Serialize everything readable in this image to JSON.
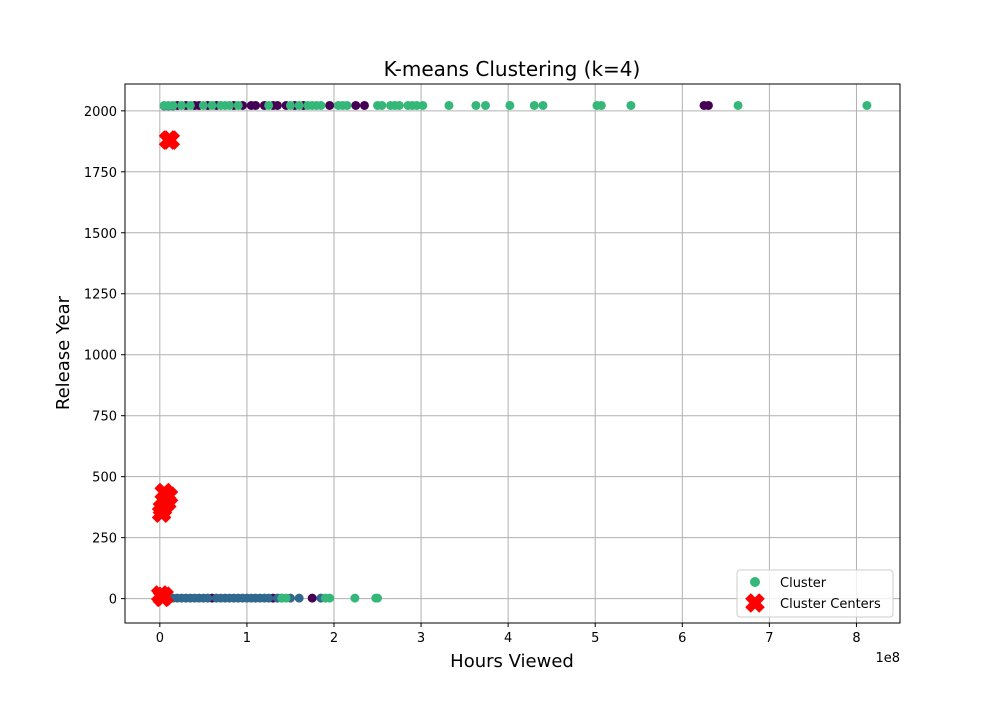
{
  "chart_data": {
    "type": "scatter",
    "title": "K-means Clustering (k=4)",
    "xlabel": "Hours Viewed",
    "ylabel": "Release Year",
    "x_offset_text": "1e8",
    "xlim": [
      -0.4,
      8.5
    ],
    "ylim": [
      -100,
      2110
    ],
    "x_ticks": [
      0,
      1,
      2,
      3,
      4,
      5,
      6,
      7,
      8
    ],
    "y_ticks": [
      0,
      250,
      500,
      750,
      1000,
      1250,
      1500,
      1750,
      2000
    ],
    "grid": true,
    "legend_position": "bottom-right",
    "legend": [
      {
        "label": "Cluster",
        "marker": "circle",
        "color": "#35b779"
      },
      {
        "label": "Cluster Centers",
        "marker": "x",
        "color": "#ff0000"
      }
    ],
    "colors": {
      "cluster_0": "#440154",
      "cluster_1": "#31688e",
      "cluster_2": "#35b779",
      "centers": "#ff0000"
    },
    "series": [
      {
        "cluster": 0,
        "color": "#440154",
        "points": [
          [
            0.2,
            2022
          ],
          [
            0.3,
            2022
          ],
          [
            0.4,
            2022
          ],
          [
            0.45,
            2022
          ],
          [
            0.55,
            2022
          ],
          [
            0.65,
            2022
          ],
          [
            0.85,
            2022
          ],
          [
            0.95,
            2022
          ],
          [
            1.05,
            2022
          ],
          [
            1.1,
            2022
          ],
          [
            1.2,
            2022
          ],
          [
            1.3,
            2022
          ],
          [
            1.35,
            2022
          ],
          [
            1.45,
            2022
          ],
          [
            1.55,
            2022
          ],
          [
            1.65,
            2022
          ],
          [
            1.95,
            2022
          ],
          [
            2.25,
            2022
          ],
          [
            2.35,
            2022
          ],
          [
            6.25,
            2022
          ],
          [
            6.3,
            2022
          ],
          [
            0.6,
            2
          ],
          [
            1.3,
            2
          ],
          [
            1.75,
            2
          ]
        ]
      },
      {
        "cluster": 1,
        "color": "#31688e",
        "points": [
          [
            0.05,
            2
          ],
          [
            0.1,
            2
          ],
          [
            0.15,
            2
          ],
          [
            0.2,
            2
          ],
          [
            0.25,
            2
          ],
          [
            0.3,
            2
          ],
          [
            0.35,
            2
          ],
          [
            0.4,
            2
          ],
          [
            0.45,
            2
          ],
          [
            0.5,
            2
          ],
          [
            0.55,
            2
          ],
          [
            0.65,
            2
          ],
          [
            0.7,
            2
          ],
          [
            0.75,
            2
          ],
          [
            0.8,
            2
          ],
          [
            0.85,
            2
          ],
          [
            0.9,
            2
          ],
          [
            0.95,
            2
          ],
          [
            1.0,
            2
          ],
          [
            1.05,
            2
          ],
          [
            1.1,
            2
          ],
          [
            1.15,
            2
          ],
          [
            1.2,
            2
          ],
          [
            1.25,
            2
          ],
          [
            1.35,
            2
          ],
          [
            1.4,
            2
          ],
          [
            1.5,
            2
          ],
          [
            1.6,
            2
          ],
          [
            1.85,
            2
          ],
          [
            0.05,
            2020
          ],
          [
            0.1,
            2020
          ],
          [
            0.15,
            2020
          ]
        ]
      },
      {
        "cluster": 2,
        "color": "#35b779",
        "points": [
          [
            0.05,
            2022
          ],
          [
            0.1,
            2022
          ],
          [
            0.15,
            2022
          ],
          [
            0.25,
            2022
          ],
          [
            0.35,
            2022
          ],
          [
            0.5,
            2022
          ],
          [
            0.6,
            2022
          ],
          [
            0.7,
            2022
          ],
          [
            0.75,
            2022
          ],
          [
            0.8,
            2022
          ],
          [
            0.9,
            2022
          ],
          [
            1.25,
            2022
          ],
          [
            1.5,
            2022
          ],
          [
            1.6,
            2022
          ],
          [
            1.7,
            2022
          ],
          [
            1.75,
            2022
          ],
          [
            1.8,
            2022
          ],
          [
            1.85,
            2022
          ],
          [
            2.05,
            2022
          ],
          [
            2.1,
            2022
          ],
          [
            2.15,
            2022
          ],
          [
            2.5,
            2022
          ],
          [
            2.55,
            2022
          ],
          [
            2.65,
            2022
          ],
          [
            2.7,
            2022
          ],
          [
            2.75,
            2022
          ],
          [
            2.85,
            2022
          ],
          [
            2.9,
            2022
          ],
          [
            2.95,
            2022
          ],
          [
            3.02,
            2022
          ],
          [
            3.32,
            2022
          ],
          [
            3.63,
            2022
          ],
          [
            3.74,
            2022
          ],
          [
            4.02,
            2022
          ],
          [
            4.3,
            2022
          ],
          [
            4.4,
            2022
          ],
          [
            5.02,
            2022
          ],
          [
            5.07,
            2022
          ],
          [
            5.41,
            2022
          ],
          [
            6.64,
            2022
          ],
          [
            8.12,
            2022
          ],
          [
            1.4,
            2
          ],
          [
            1.45,
            2
          ],
          [
            1.9,
            2
          ],
          [
            1.95,
            2
          ],
          [
            2.24,
            2
          ],
          [
            2.48,
            2
          ],
          [
            2.5,
            2
          ]
        ]
      }
    ],
    "centers": [
      [
        0.1,
        1880
      ],
      [
        0.12,
        1880
      ],
      [
        0.05,
        435
      ],
      [
        0.1,
        420
      ],
      [
        0.08,
        395
      ],
      [
        0.03,
        370
      ],
      [
        0.02,
        350
      ],
      [
        0.01,
        15
      ],
      [
        0.05,
        10
      ],
      [
        0.03,
        5
      ]
    ]
  }
}
